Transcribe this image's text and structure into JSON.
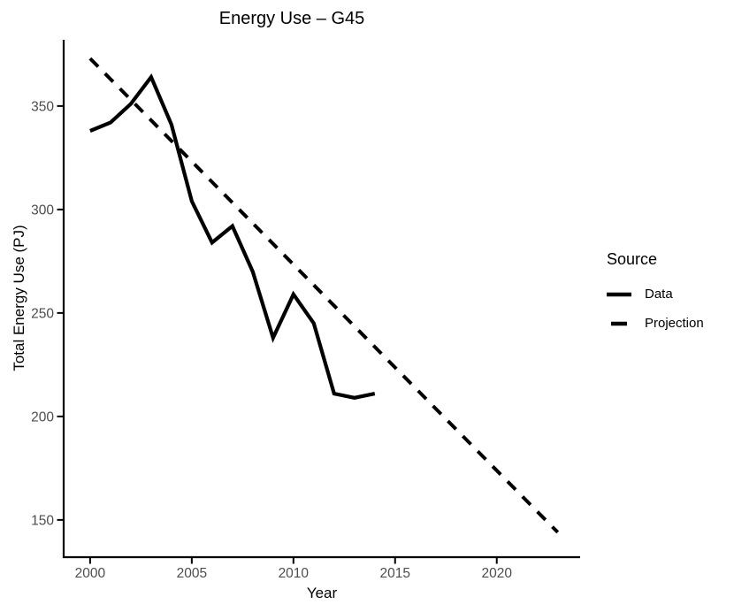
{
  "chart_data": {
    "type": "line",
    "title": "Energy Use – G45",
    "xlabel": "Year",
    "ylabel": "Total Energy Use (PJ)",
    "x_ticks": [
      2000,
      2005,
      2010,
      2015,
      2020
    ],
    "y_ticks": [
      150,
      200,
      250,
      300,
      350
    ],
    "xlim": [
      1998.7,
      2024.1
    ],
    "ylim": [
      132,
      382
    ],
    "grid": false,
    "legend": {
      "title": "Source",
      "position": "right",
      "entries": [
        {
          "label": "Data",
          "line_style": "solid"
        },
        {
          "label": "Projection",
          "line_style": "dashed"
        }
      ]
    },
    "colors": {
      "line": "#000000",
      "axis": "#000000",
      "tick_label": "#4d4d4d",
      "title": "#000000"
    },
    "series": [
      {
        "name": "Data",
        "line_style": "solid",
        "x": [
          2000,
          2001,
          2002,
          2003,
          2004,
          2005,
          2006,
          2007,
          2008,
          2009,
          2010,
          2011,
          2012,
          2013,
          2014
        ],
        "values": [
          338,
          342,
          351,
          364,
          341,
          304,
          284,
          292,
          270,
          238,
          259,
          245,
          211,
          209,
          211
        ]
      },
      {
        "name": "Projection",
        "line_style": "dashed",
        "x": [
          2000,
          2023
        ],
        "values": [
          373,
          144
        ]
      }
    ]
  }
}
